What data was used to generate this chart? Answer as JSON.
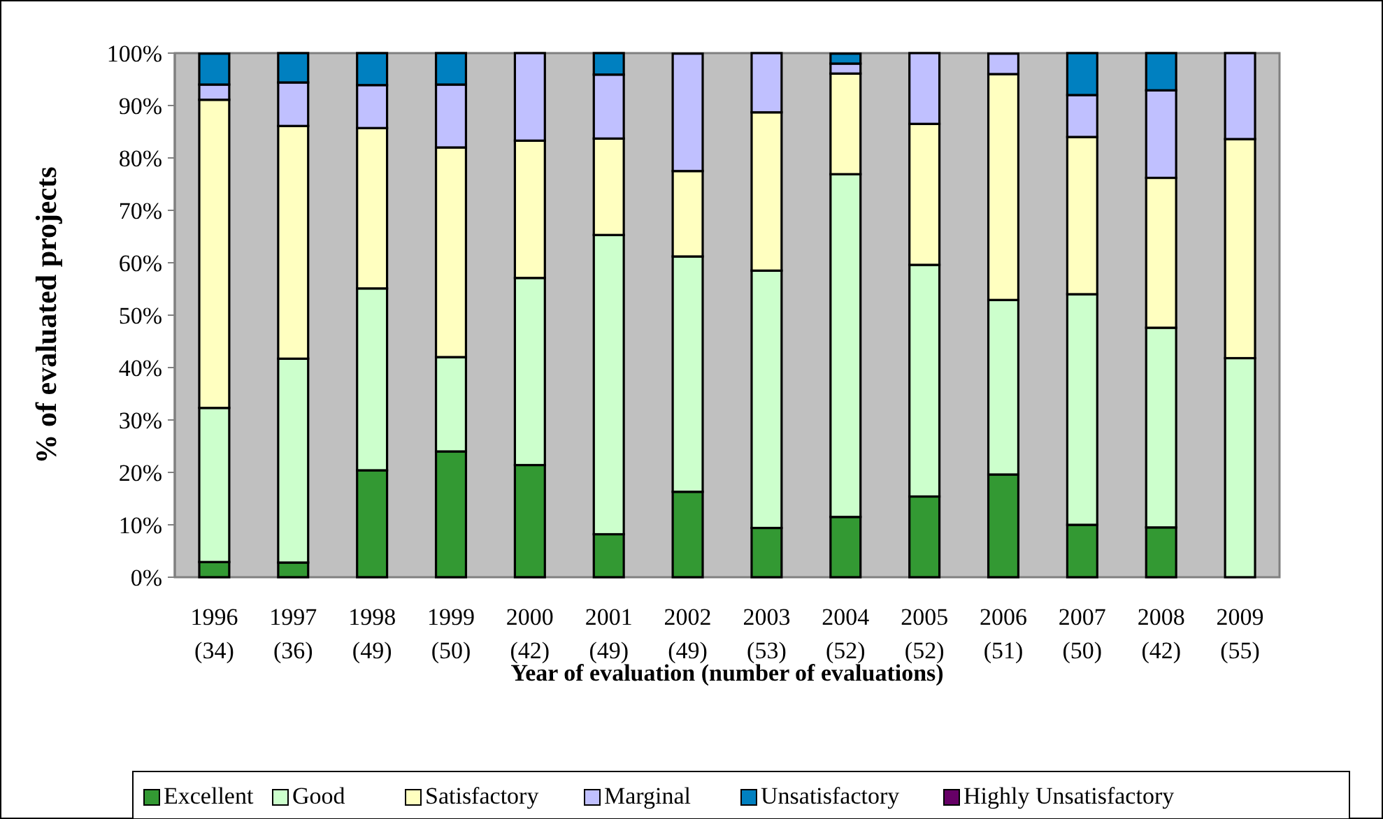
{
  "chart_data": {
    "type": "bar",
    "stacked": true,
    "xlabel": "Year of evaluation (number of evaluations)",
    "ylabel": "% of evaluated projects",
    "categories": [
      "1996\n(34)",
      "1997\n(36)",
      "1998\n(49)",
      "1999\n(50)",
      "2000\n(42)",
      "2001\n(49)",
      "2002\n(49)",
      "2003\n(53)",
      "2004\n(52)",
      "2005\n(52)",
      "2006\n(51)",
      "2007\n(50)",
      "2008\n(42)",
      "2009\n(55)"
    ],
    "series": [
      {
        "name": "Excellent",
        "color": "#339933",
        "values": [
          2.9,
          2.8,
          20.4,
          24,
          21.4,
          8.2,
          16.3,
          9.4,
          11.5,
          15.4,
          19.6,
          10,
          9.5,
          0
        ]
      },
      {
        "name": "Good",
        "color": "#ccffcc",
        "values": [
          29.4,
          38.9,
          34.7,
          18,
          35.7,
          57.1,
          44.9,
          49.1,
          65.4,
          44.2,
          33.3,
          44,
          38.1,
          41.8
        ]
      },
      {
        "name": "Satisfactory",
        "color": "#ffffc0",
        "values": [
          58.8,
          44.4,
          30.6,
          40,
          26.2,
          18.4,
          16.3,
          30.2,
          19.2,
          26.9,
          43.1,
          30,
          28.6,
          41.8
        ]
      },
      {
        "name": "Marginal",
        "color": "#c0c0ff",
        "values": [
          2.9,
          8.3,
          8.2,
          12,
          16.7,
          12.2,
          22.4,
          11.3,
          1.9,
          13.5,
          3.9,
          8,
          16.7,
          16.4
        ]
      },
      {
        "name": "Unsatisfactory",
        "color": "#0080c0",
        "values": [
          5.9,
          5.6,
          6.1,
          6,
          0,
          4.1,
          0,
          0,
          1.9,
          0,
          0,
          8,
          7.1,
          0
        ]
      },
      {
        "name": "Highly Unsatisfactory",
        "color": "#660066",
        "values": [
          0,
          0,
          0,
          0,
          0,
          0,
          0,
          0,
          0,
          0,
          0,
          0,
          0,
          0
        ]
      }
    ],
    "ylim": [
      0,
      100
    ],
    "yticks": [
      {
        "value": 0,
        "label": "0%"
      },
      {
        "value": 10,
        "label": "10%"
      },
      {
        "value": 20,
        "label": "20%"
      },
      {
        "value": 30,
        "label": "30%"
      },
      {
        "value": 40,
        "label": "40%"
      },
      {
        "value": 50,
        "label": "50%"
      },
      {
        "value": 60,
        "label": "60%"
      },
      {
        "value": 70,
        "label": "70%"
      },
      {
        "value": 80,
        "label": "80%"
      },
      {
        "value": 90,
        "label": "90%"
      },
      {
        "value": 100,
        "label": "100%"
      }
    ],
    "legend": "bottom",
    "grid": false
  }
}
